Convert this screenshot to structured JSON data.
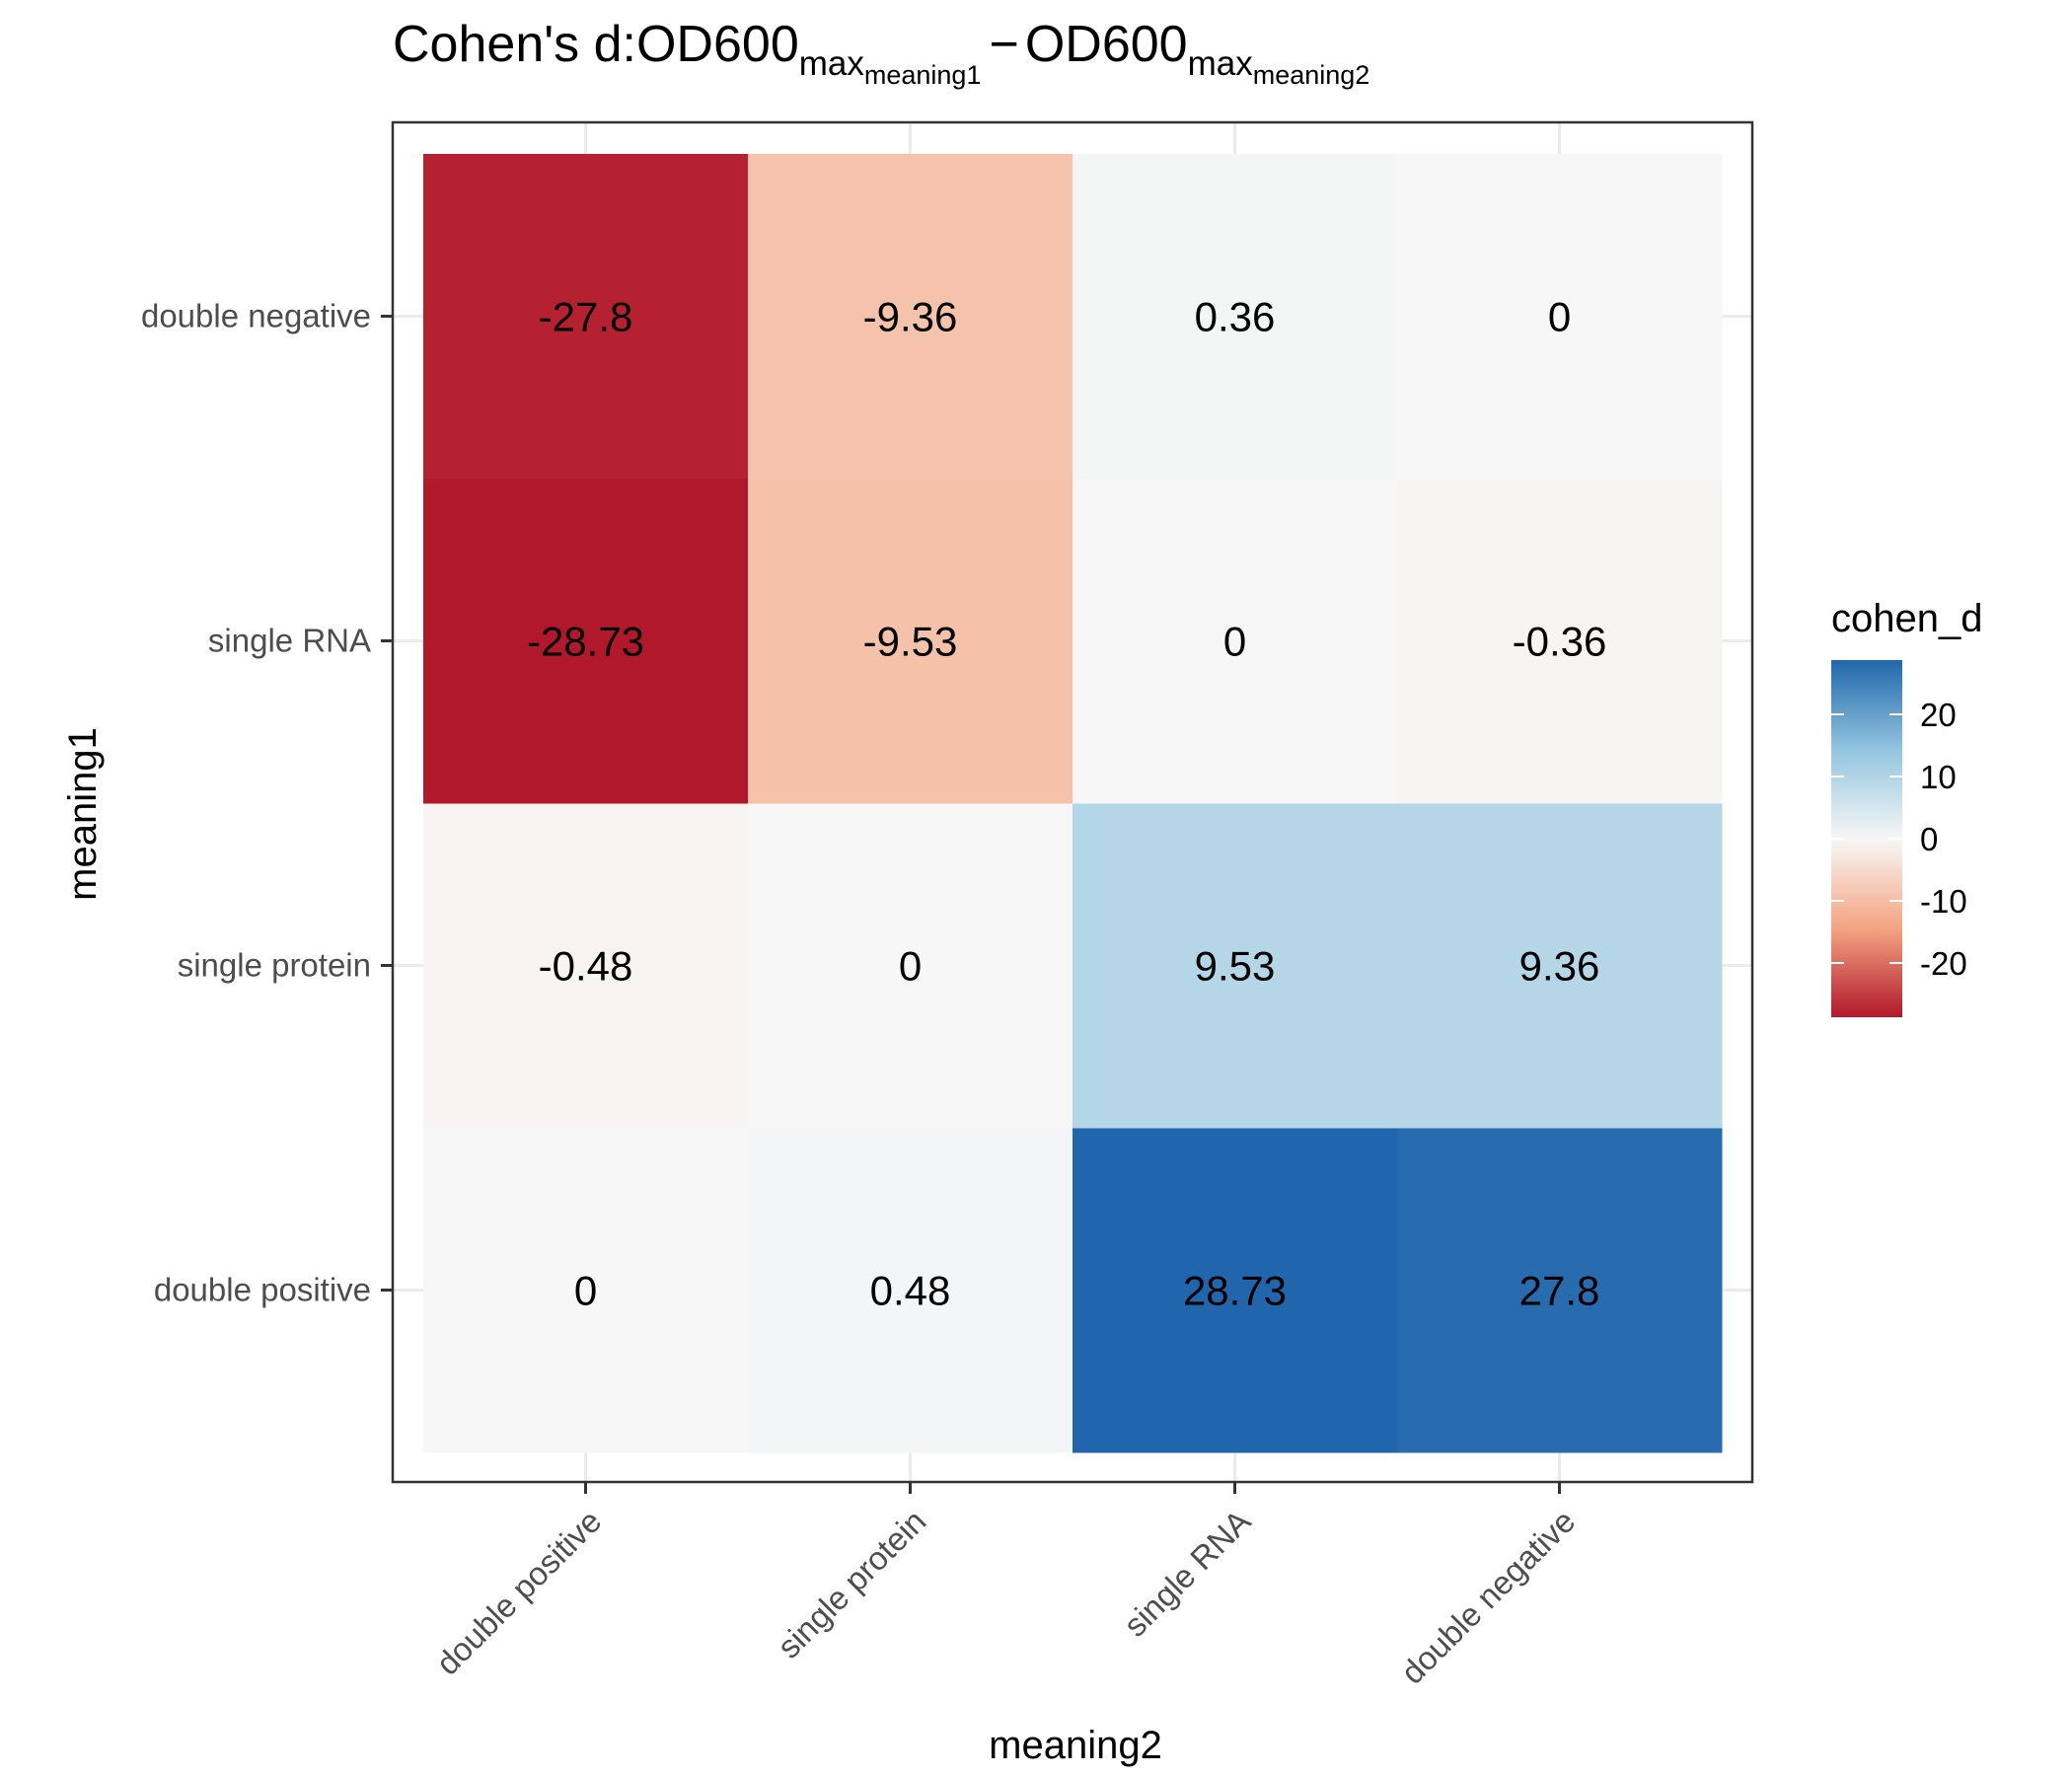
{
  "chart_data": {
    "type": "heatmap",
    "title": {
      "prefix": "Cohen's d:",
      "term1": {
        "base": "OD600",
        "sub": "max",
        "subsub": "meaning1"
      },
      "operator": "−",
      "term2": {
        "base": "OD600",
        "sub": "max",
        "subsub": "meaning2"
      }
    },
    "xlabel": "meaning2",
    "ylabel": "meaning1",
    "x_categories": [
      "double positive",
      "single protein",
      "single RNA",
      "double negative"
    ],
    "y_categories": [
      "double positive",
      "single protein",
      "single RNA",
      "double negative"
    ],
    "values": [
      [
        "0",
        "0.48",
        "28.73",
        "27.8"
      ],
      [
        "-0.48",
        "0",
        "9.53",
        "9.36"
      ],
      [
        "-28.73",
        "-9.53",
        "0",
        "-0.36"
      ],
      [
        "-27.8",
        "-9.36",
        "0.36",
        "0"
      ]
    ],
    "legend": {
      "title": "cohen_d",
      "ticks": [
        "20",
        "10",
        "0",
        "-10",
        "-20"
      ],
      "tick_values": [
        20,
        10,
        0,
        -10,
        -20
      ],
      "range": [
        -28.73,
        28.73
      ],
      "placement": "right"
    },
    "color_scale": {
      "low": "#b2182b",
      "mid_low": "#f4a582",
      "mid": "#f7f7f7",
      "mid_high": "#92c5de",
      "high": "#2166ac"
    },
    "grid": true
  }
}
